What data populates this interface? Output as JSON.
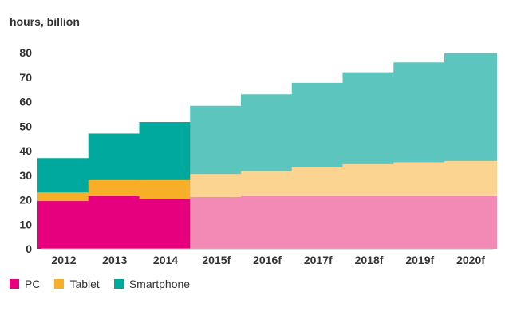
{
  "chart_data": {
    "type": "bar",
    "stacked": true,
    "y_unit_label": "hours, billion",
    "categories": [
      "2012",
      "2013",
      "2014",
      "2015f",
      "2016f",
      "2017f",
      "2018f",
      "2019f",
      "2020f"
    ],
    "forecast_categories": [
      "2015f",
      "2016f",
      "2017f",
      "2018f",
      "2019f",
      "2020f"
    ],
    "ylim": [
      0,
      80
    ],
    "yticks": [
      0,
      10,
      20,
      30,
      40,
      50,
      60,
      70,
      80
    ],
    "grid": false,
    "legend_position": "bottom-left",
    "series": [
      {
        "name": "PC",
        "values": [
          19.5,
          21.5,
          20.3,
          21.2,
          21.5,
          21.5,
          21.5,
          21.5,
          21.5
        ]
      },
      {
        "name": "Tablet",
        "values": [
          3.5,
          6.5,
          7.7,
          9.3,
          10.2,
          11.7,
          13.0,
          13.8,
          14.3
        ]
      },
      {
        "name": "Smartphone",
        "values": [
          14.0,
          19.0,
          23.7,
          27.8,
          31.3,
          34.5,
          37.5,
          40.7,
          44.0
        ]
      }
    ],
    "colors": {
      "PC": {
        "actual": "#E6007E",
        "forecast": "#F28AB5"
      },
      "Tablet": {
        "actual": "#F7AF28",
        "forecast": "#FCD491"
      },
      "Smartphone": {
        "actual": "#00A99D",
        "forecast": "#5CC6BE"
      }
    }
  }
}
